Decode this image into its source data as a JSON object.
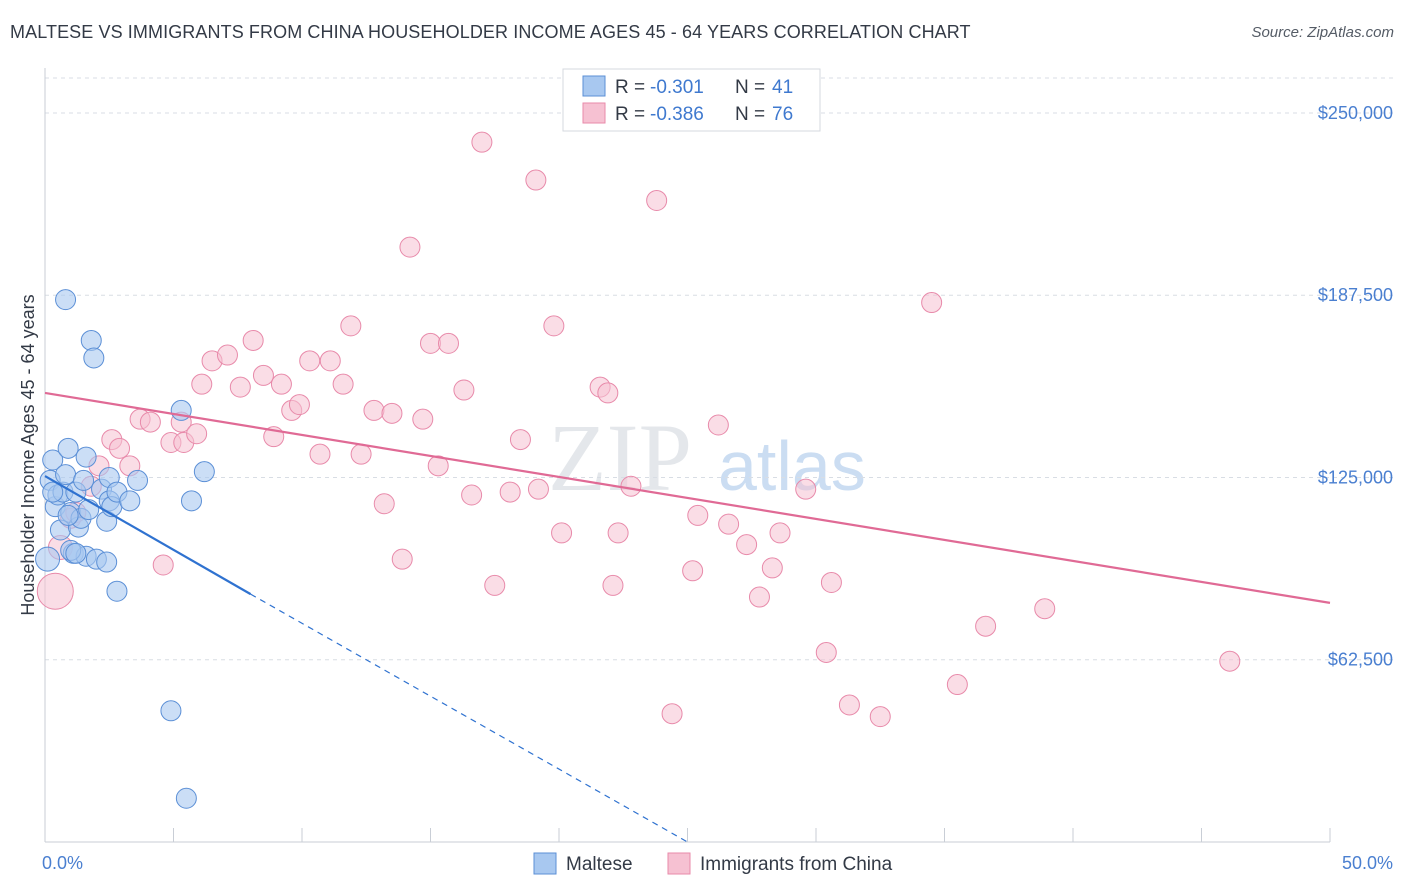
{
  "title": "MALTESE VS IMMIGRANTS FROM CHINA HOUSEHOLDER INCOME AGES 45 - 64 YEARS CORRELATION CHART",
  "source": "Source: ZipAtlas.com",
  "watermark": {
    "zip": "ZIP",
    "atlas": "atlas"
  },
  "legend_top": [
    {
      "r_label": "R =",
      "r_value": "-0.301",
      "n_label": "N =",
      "n_value": "41"
    },
    {
      "r_label": "R =",
      "r_value": "-0.386",
      "n_label": "N =",
      "n_value": "76"
    }
  ],
  "colors": {
    "maltese_fill": "#a8c8f0",
    "maltese_stroke": "#5b8fd6",
    "maltese_line": "#2f72d0",
    "china_fill": "#f6c1d2",
    "china_stroke": "#e88aaa",
    "china_line": "#e06a95",
    "grid": "#d8dde4",
    "axis_text": "#4a7fd0"
  },
  "chart_data": {
    "type": "scatter",
    "title": "MALTESE VS IMMIGRANTS FROM CHINA HOUSEHOLDER INCOME AGES 45 - 64 YEARS CORRELATION CHART",
    "xlabel": "",
    "ylabel": "Householder Income Ages 45 - 64 years",
    "xlim": [
      0,
      50
    ],
    "ylim": [
      0,
      262000
    ],
    "x_tick_labels": [
      "0.0%",
      "50.0%"
    ],
    "y_ticks": [
      62500,
      125000,
      187500,
      250000
    ],
    "y_tick_labels": [
      "$62,500",
      "$125,000",
      "$187,500",
      "$250,000"
    ],
    "grid": true,
    "legend_placement": "top-center and bottom",
    "series": [
      {
        "name": "Maltese",
        "r": -0.301,
        "n": 41,
        "trend": {
          "x0": 0,
          "y0": 125500,
          "x1": 8,
          "y1": 85000,
          "dashed_to_x": 25,
          "dashed_to_y": 0
        },
        "points": [
          [
            0.1,
            97000,
            12
          ],
          [
            0.2,
            124000,
            10
          ],
          [
            0.3,
            131000,
            10
          ],
          [
            0.4,
            115000,
            10
          ],
          [
            0.5,
            119000,
            10
          ],
          [
            0.6,
            107000,
            10
          ],
          [
            0.7,
            120000,
            10
          ],
          [
            0.8,
            126000,
            10
          ],
          [
            0.9,
            135000,
            10
          ],
          [
            1.0,
            113000,
            10
          ],
          [
            1.1,
            99000,
            10
          ],
          [
            1.2,
            120000,
            10
          ],
          [
            1.3,
            108000,
            10
          ],
          [
            1.4,
            111000,
            10
          ],
          [
            1.5,
            124000,
            10
          ],
          [
            1.6,
            98000,
            10
          ],
          [
            1.6,
            132000,
            10
          ],
          [
            1.7,
            114000,
            10
          ],
          [
            1.8,
            172000,
            10
          ],
          [
            1.9,
            166000,
            10
          ],
          [
            2.0,
            97000,
            10
          ],
          [
            2.2,
            121000,
            10
          ],
          [
            2.4,
            96000,
            10
          ],
          [
            2.4,
            110000,
            10
          ],
          [
            2.5,
            117000,
            10
          ],
          [
            2.5,
            125000,
            10
          ],
          [
            2.6,
            115000,
            10
          ],
          [
            2.8,
            120000,
            10
          ],
          [
            2.8,
            86000,
            10
          ],
          [
            3.3,
            117000,
            10
          ],
          [
            3.6,
            124000,
            10
          ],
          [
            0.8,
            186000,
            10
          ],
          [
            0.9,
            112000,
            10
          ],
          [
            1.0,
            100000,
            10
          ],
          [
            1.2,
            99000,
            10
          ],
          [
            5.3,
            148000,
            10
          ],
          [
            5.7,
            117000,
            10
          ],
          [
            6.2,
            127000,
            10
          ],
          [
            4.9,
            45000,
            10
          ],
          [
            5.5,
            15000,
            10
          ],
          [
            0.3,
            120000,
            10
          ]
        ]
      },
      {
        "name": "Immigrants from China",
        "r": -0.386,
        "n": 76,
        "trend": {
          "x0": 0,
          "y0": 154000,
          "x1": 50,
          "y1": 82000
        },
        "points": [
          [
            0.4,
            86000,
            18
          ],
          [
            0.6,
            101000,
            12
          ],
          [
            1.0,
            111000,
            10
          ],
          [
            1.2,
            113000,
            10
          ],
          [
            1.8,
            122000,
            10
          ],
          [
            2.1,
            129000,
            10
          ],
          [
            2.6,
            138000,
            10
          ],
          [
            2.9,
            135000,
            10
          ],
          [
            3.3,
            129000,
            10
          ],
          [
            3.7,
            145000,
            10
          ],
          [
            4.1,
            144000,
            10
          ],
          [
            4.6,
            95000,
            10
          ],
          [
            4.9,
            137000,
            10
          ],
          [
            5.3,
            144000,
            10
          ],
          [
            5.4,
            137000,
            10
          ],
          [
            5.9,
            140000,
            10
          ],
          [
            6.1,
            157000,
            10
          ],
          [
            6.5,
            165000,
            10
          ],
          [
            7.1,
            167000,
            10
          ],
          [
            7.6,
            156000,
            10
          ],
          [
            8.1,
            172000,
            10
          ],
          [
            8.5,
            160000,
            10
          ],
          [
            8.9,
            139000,
            10
          ],
          [
            9.2,
            157000,
            10
          ],
          [
            9.6,
            148000,
            10
          ],
          [
            9.9,
            150000,
            10
          ],
          [
            10.3,
            165000,
            10
          ],
          [
            10.7,
            133000,
            10
          ],
          [
            11.1,
            165000,
            10
          ],
          [
            11.6,
            157000,
            10
          ],
          [
            11.9,
            177000,
            10
          ],
          [
            12.3,
            133000,
            10
          ],
          [
            12.8,
            148000,
            10
          ],
          [
            13.2,
            116000,
            10
          ],
          [
            13.5,
            147000,
            10
          ],
          [
            13.9,
            97000,
            10
          ],
          [
            14.2,
            204000,
            10
          ],
          [
            14.7,
            145000,
            10
          ],
          [
            15.0,
            171000,
            10
          ],
          [
            15.3,
            129000,
            10
          ],
          [
            15.7,
            171000,
            10
          ],
          [
            16.3,
            155000,
            10
          ],
          [
            16.6,
            119000,
            10
          ],
          [
            17.0,
            240000,
            10
          ],
          [
            17.5,
            88000,
            10
          ],
          [
            18.1,
            120000,
            10
          ],
          [
            18.5,
            138000,
            10
          ],
          [
            19.1,
            227000,
            10
          ],
          [
            19.2,
            121000,
            10
          ],
          [
            19.8,
            177000,
            10
          ],
          [
            20.1,
            106000,
            10
          ],
          [
            21.6,
            156000,
            10
          ],
          [
            21.9,
            154000,
            10
          ],
          [
            22.1,
            88000,
            10
          ],
          [
            22.3,
            106000,
            10
          ],
          [
            22.8,
            122000,
            10
          ],
          [
            23.8,
            220000,
            10
          ],
          [
            24.4,
            44000,
            10
          ],
          [
            25.2,
            93000,
            10
          ],
          [
            25.4,
            112000,
            10
          ],
          [
            26.2,
            143000,
            10
          ],
          [
            26.6,
            109000,
            10
          ],
          [
            27.3,
            102000,
            10
          ],
          [
            27.8,
            84000,
            10
          ],
          [
            28.3,
            94000,
            10
          ],
          [
            28.6,
            106000,
            10
          ],
          [
            29.6,
            121000,
            10
          ],
          [
            30.4,
            65000,
            10
          ],
          [
            30.6,
            89000,
            10
          ],
          [
            31.3,
            47000,
            10
          ],
          [
            32.5,
            43000,
            10
          ],
          [
            34.5,
            185000,
            10
          ],
          [
            35.5,
            54000,
            10
          ],
          [
            36.6,
            74000,
            10
          ],
          [
            38.9,
            80000,
            10
          ],
          [
            46.1,
            62000,
            10
          ]
        ]
      }
    ]
  },
  "legend_bottom": [
    {
      "label": "Maltese"
    },
    {
      "label": "Immigrants from China"
    }
  ]
}
